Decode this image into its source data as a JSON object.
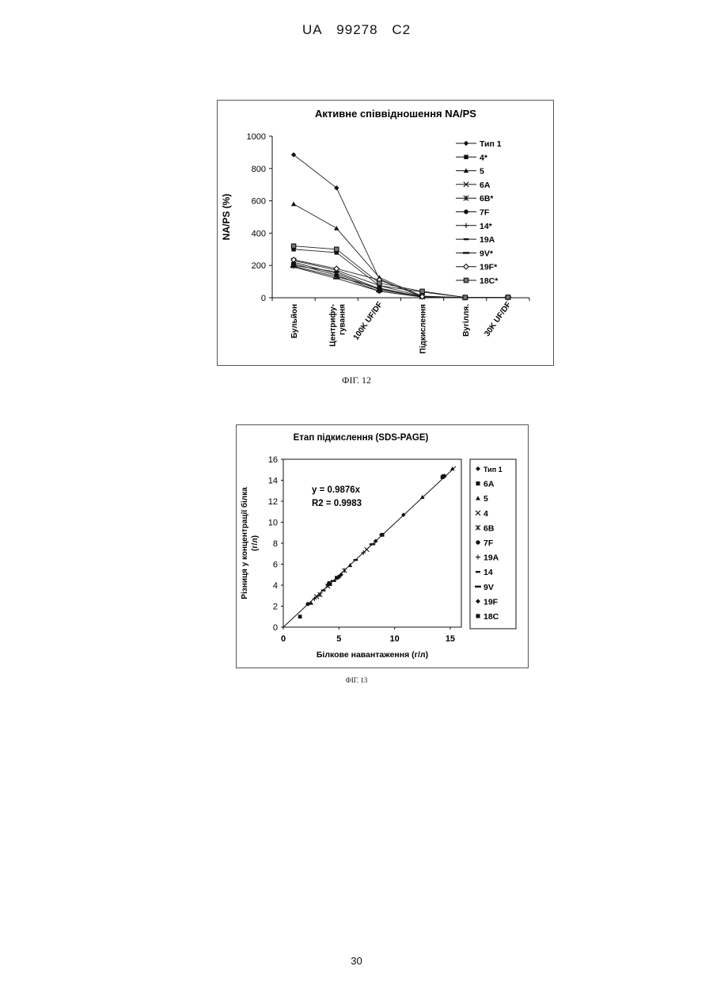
{
  "header": {
    "country": "UA",
    "number": "99278",
    "kind": "C2"
  },
  "captions": {
    "fig12": "ФІГ. 12",
    "fig13": "ФІГ. 13"
  },
  "page_number": "30",
  "chart_data": [
    {
      "type": "line",
      "title": "Активне співвідношення NA/PS",
      "ylabel": "NA/PS (%)",
      "xlabel": "",
      "ylim": [
        0,
        1000
      ],
      "yticks": [
        0,
        200,
        400,
        600,
        800,
        1000
      ],
      "categories": [
        "Бульйон",
        "Центрифу-гування",
        "100K UF/DF",
        "Підкислення",
        "Вугілля.",
        "30K UF/DF"
      ],
      "legend_position": "right",
      "grid": false,
      "series": [
        {
          "name": "Тип 1",
          "marker": "diamond",
          "values": [
            885,
            680,
            115,
            5,
            1,
            2
          ]
        },
        {
          "name": "4*",
          "marker": "square",
          "values": [
            300,
            280,
            75,
            35,
            2,
            3
          ]
        },
        {
          "name": "5",
          "marker": "triangle",
          "values": [
            580,
            430,
            125,
            10,
            1,
            2
          ]
        },
        {
          "name": "6A",
          "marker": "x",
          "values": [
            230,
            170,
            75,
            8,
            1,
            2
          ]
        },
        {
          "name": "6B*",
          "marker": "asterisk",
          "values": [
            220,
            150,
            50,
            6,
            1,
            2
          ]
        },
        {
          "name": "7F",
          "marker": "circle",
          "values": [
            210,
            140,
            40,
            5,
            1,
            2
          ]
        },
        {
          "name": "14*",
          "marker": "plus",
          "values": [
            195,
            130,
            60,
            4,
            1,
            2
          ]
        },
        {
          "name": "19A",
          "marker": "dash",
          "values": [
            200,
            160,
            55,
            6,
            1,
            2
          ]
        },
        {
          "name": "9V*",
          "marker": "longdash",
          "values": [
            190,
            120,
            40,
            4,
            1,
            2
          ]
        },
        {
          "name": "19F*",
          "marker": "diamond-open",
          "values": [
            235,
            180,
            110,
            7,
            1,
            2
          ]
        },
        {
          "name": "18C*",
          "marker": "square-open",
          "values": [
            320,
            300,
            90,
            40,
            2,
            3
          ]
        }
      ]
    },
    {
      "type": "scatter",
      "title": "Етап підкислення (SDS-PAGE)",
      "xlabel": "Білкове навантаження (г/л)",
      "ylabel_lines": [
        "Різниця у концентрації білка",
        "(г/л)"
      ],
      "xlim": [
        0,
        16
      ],
      "ylim": [
        0,
        16
      ],
      "xticks": [
        0,
        5,
        10,
        15
      ],
      "yticks": [
        0,
        2,
        4,
        6,
        8,
        10,
        12,
        14,
        16
      ],
      "legend_position": "right",
      "annotations": [
        "y = 0.9876x",
        "R2 = 0.9983"
      ],
      "trendline": {
        "slope": 0.9876,
        "x_range": [
          0,
          15.5
        ]
      },
      "series": [
        {
          "name": "Тип 1",
          "marker": "diamond",
          "points": [
            [
              4.0,
              4.0
            ],
            [
              8.8,
              8.8
            ],
            [
              14.5,
              14.4
            ]
          ]
        },
        {
          "name": "6A",
          "marker": "square",
          "points": [
            [
              1.5,
              1.0
            ],
            [
              4.2,
              4.1
            ],
            [
              14.4,
              14.4
            ]
          ]
        },
        {
          "name": "5",
          "marker": "triangle",
          "points": [
            [
              2.5,
              2.3
            ],
            [
              6.0,
              5.9
            ],
            [
              12.5,
              12.4
            ],
            [
              15.2,
              15.1
            ]
          ]
        },
        {
          "name": "4",
          "marker": "x",
          "points": [
            [
              3.0,
              2.9
            ],
            [
              4.0,
              3.9
            ],
            [
              7.5,
              7.4
            ]
          ]
        },
        {
          "name": "6B",
          "marker": "asterisk",
          "points": [
            [
              3.3,
              3.1
            ],
            [
              5.5,
              5.4
            ]
          ]
        },
        {
          "name": "7F",
          "marker": "circle",
          "points": [
            [
              2.2,
              2.2
            ],
            [
              4.1,
              4.2
            ],
            [
              5.0,
              4.8
            ]
          ]
        },
        {
          "name": "19A",
          "marker": "plus",
          "points": [
            [
              2.8,
              2.7
            ],
            [
              7.2,
              7.1
            ]
          ]
        },
        {
          "name": "14",
          "marker": "dash",
          "points": [
            [
              3.6,
              3.5
            ],
            [
              6.5,
              6.4
            ]
          ]
        },
        {
          "name": "9V",
          "marker": "longdash",
          "points": [
            [
              4.5,
              4.4
            ],
            [
              8.0,
              7.9
            ]
          ]
        },
        {
          "name": "19F",
          "marker": "diamond",
          "points": [
            [
              5.2,
              5.0
            ],
            [
              8.3,
              8.2
            ],
            [
              10.8,
              10.7
            ]
          ]
        },
        {
          "name": "18C",
          "marker": "square",
          "points": [
            [
              4.8,
              4.7
            ],
            [
              8.9,
              8.8
            ],
            [
              14.3,
              14.3
            ]
          ]
        }
      ]
    }
  ]
}
